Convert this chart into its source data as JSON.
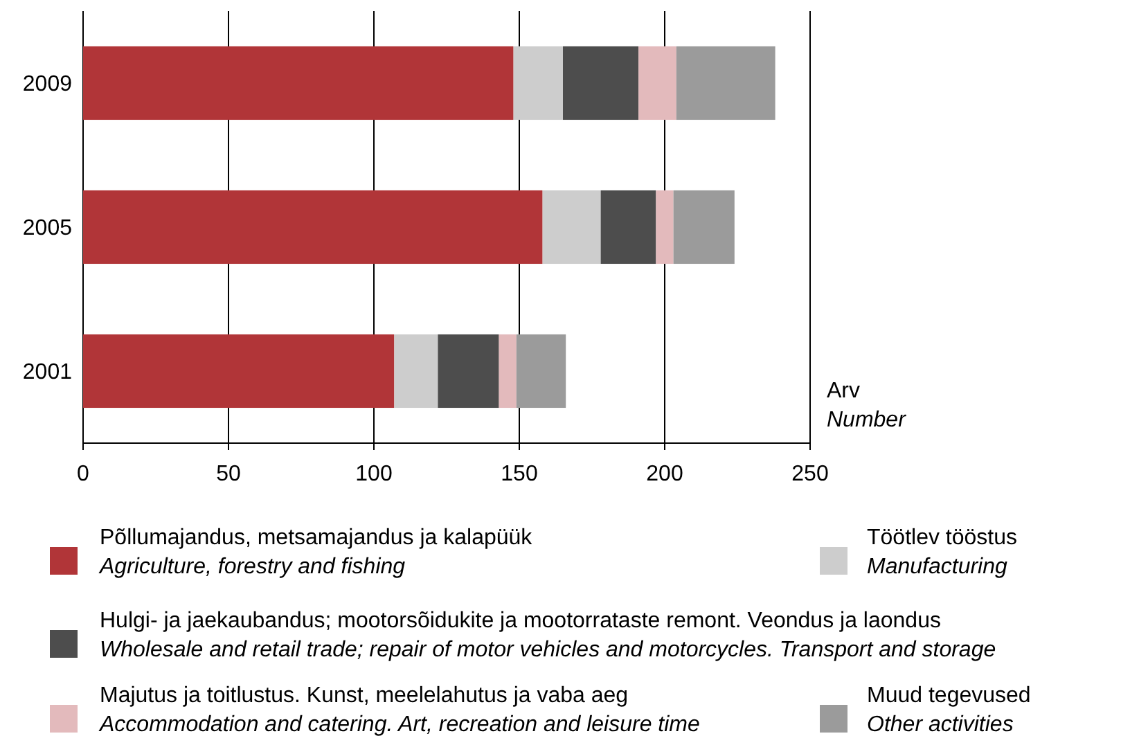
{
  "chart_data": {
    "type": "bar",
    "orientation": "horizontal",
    "stacked": true,
    "categories": [
      "2009",
      "2005",
      "2001"
    ],
    "series": [
      {
        "name": "Põllumajandus, metsamajandus ja kalapüük\nAgriculture, forestry and fishing",
        "color": "#b13538",
        "values": [
          148,
          158,
          107
        ]
      },
      {
        "name": "Töötlev tööstus\nManufacturing",
        "color": "#cdcdcd",
        "values": [
          17,
          20,
          15
        ]
      },
      {
        "name": "Hulgi- ja jaekaubandus; mootorsõidukite ja mootorrataste remont. Veondus ja laondus\nWholesale and retail trade; repair of motor vehicles and motorcycles. Transport and storage",
        "color": "#4d4d4d",
        "values": [
          26,
          19,
          21
        ]
      },
      {
        "name": "Majutus ja toitlustus. Kunst, meelelahutus ja vaba aeg\nAccommodation and catering. Art, recreation and leisure time",
        "color": "#e3babc",
        "values": [
          13,
          6,
          6
        ]
      },
      {
        "name": "Muud  tegevused\nOther activities",
        "color": "#9b9b9b",
        "values": [
          34,
          21,
          17
        ]
      }
    ],
    "xlabel": "Arv\nNumber",
    "xlim": [
      0,
      250
    ],
    "xticks": [
      0,
      50,
      100,
      150,
      200,
      250
    ],
    "grid": "x",
    "legend": "bottom"
  }
}
